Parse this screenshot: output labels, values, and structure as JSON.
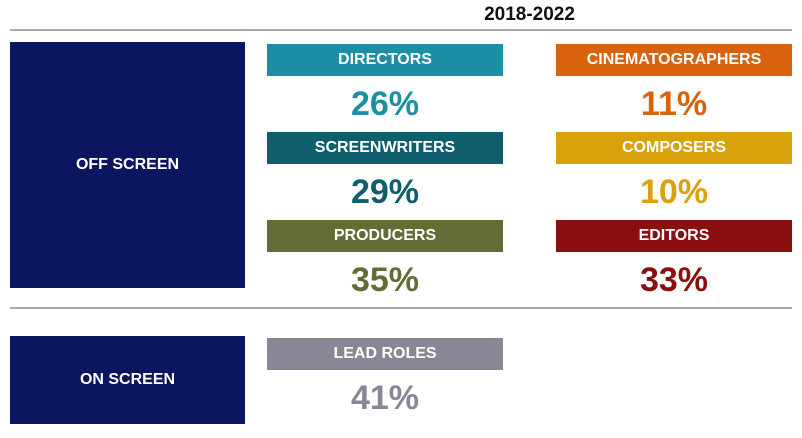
{
  "title": "2018-2022",
  "sections": [
    {
      "label": "OFF SCREEN",
      "items": [
        {
          "label": "DIRECTORS",
          "value": "26%",
          "color": "#1a8fa6"
        },
        {
          "label": "CINEMATOGRAPHERS",
          "value": "11%",
          "color": "#d9620f"
        },
        {
          "label": "SCREENWRITERS",
          "value": "29%",
          "color": "#0e5e6b"
        },
        {
          "label": "COMPOSERS",
          "value": "10%",
          "color": "#d9a20a"
        },
        {
          "label": "PRODUCERS",
          "value": "35%",
          "color": "#656b35"
        },
        {
          "label": "EDITORS",
          "value": "33%",
          "color": "#8a0f0f"
        }
      ]
    },
    {
      "label": "ON SCREEN",
      "items": [
        {
          "label": "LEAD ROLES",
          "value": "41%",
          "color": "#878796"
        }
      ]
    }
  ]
}
